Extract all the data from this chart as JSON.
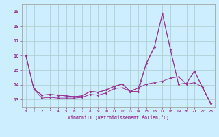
{
  "title": "",
  "xlabel": "Windchill (Refroidissement éolien,°C)",
  "ylabel": "",
  "bg_color": "#cceeff",
  "grid_color": "#aacccc",
  "line_color": "#993399",
  "xlim": [
    -0.5,
    23.5
  ],
  "ylim": [
    12.5,
    19.5
  ],
  "yticks": [
    13,
    14,
    15,
    16,
    17,
    18,
    19
  ],
  "xticks": [
    0,
    1,
    2,
    3,
    4,
    5,
    6,
    7,
    8,
    9,
    10,
    11,
    12,
    13,
    14,
    15,
    16,
    17,
    18,
    19,
    20,
    21,
    22,
    23
  ],
  "lines": [
    [
      16.0,
      13.7,
      13.1,
      13.15,
      13.1,
      13.1,
      13.1,
      13.15,
      13.35,
      13.3,
      13.45,
      13.75,
      13.8,
      13.55,
      13.55,
      15.5,
      16.6,
      18.85,
      16.4,
      14.05,
      14.1,
      14.95,
      13.8,
      12.75
    ],
    [
      16.0,
      13.7,
      13.3,
      13.35,
      13.3,
      13.25,
      13.2,
      13.25,
      13.55,
      13.5,
      13.65,
      13.9,
      14.05,
      13.55,
      13.8,
      14.05,
      14.15,
      14.25,
      14.45,
      14.55,
      14.05,
      14.15,
      13.85,
      12.75
    ],
    [
      16.0,
      13.7,
      13.3,
      13.35,
      13.3,
      13.25,
      13.2,
      13.25,
      13.55,
      13.5,
      13.65,
      13.9,
      14.05,
      13.55,
      13.8,
      15.45,
      16.55,
      18.85,
      16.4,
      14.05,
      14.1,
      14.95,
      13.8,
      12.75
    ]
  ],
  "figsize": [
    3.2,
    2.0
  ],
  "dpi": 100
}
